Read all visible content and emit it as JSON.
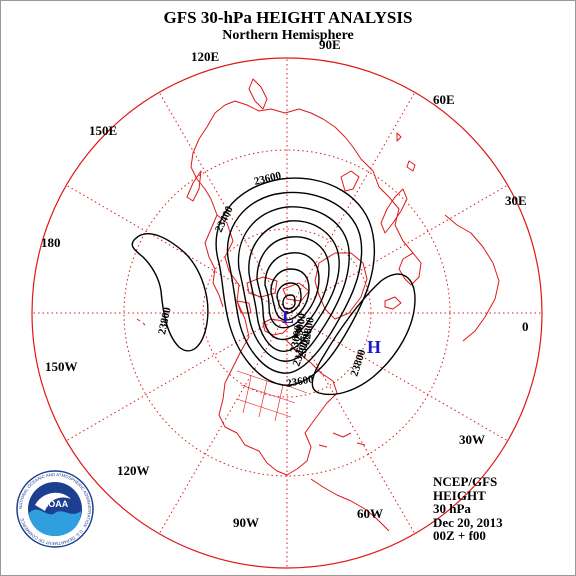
{
  "header": {
    "title": "GFS 30-hPa HEIGHT ANALYSIS",
    "subtitle": "Northern Hemisphere"
  },
  "longitude_labels": [
    "120E",
    "90E",
    "60E",
    "150E",
    "30E",
    "180",
    "0",
    "150W",
    "30W",
    "120W",
    "90W",
    "60W"
  ],
  "contour_labels": [
    "23600",
    "23400",
    "23800",
    "23800",
    "23000",
    "22800",
    "23000",
    "23200",
    "23400",
    "23600"
  ],
  "pressure_systems": [
    {
      "label": "L",
      "color": "#1a1acc"
    },
    {
      "label": "H",
      "color": "#1a1acc"
    }
  ],
  "info": {
    "source": "NCEP/GFS",
    "field": "HEIGHT",
    "level": "30 hPa",
    "date": "Dec 20, 2013",
    "time": "00Z + f00"
  },
  "logo": {
    "name": "NOAA",
    "ring_text": "NATIONAL OCEANIC AND ATMOSPHERIC ADMINISTRATION · U.S. DEPARTMENT OF COMMERCE"
  },
  "colors": {
    "coastline": "#e01818",
    "graticule": "#e01818",
    "contour": "#000000",
    "pressure_label": "#1a1acc"
  }
}
